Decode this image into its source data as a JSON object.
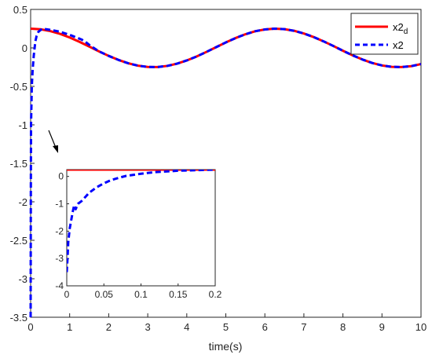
{
  "chart_data": [
    {
      "type": "line",
      "title": "",
      "xlabel": "time(s)",
      "ylabel": "",
      "xlim": [
        0,
        10
      ],
      "ylim": [
        -3.5,
        0.5
      ],
      "xticks": [
        0,
        1,
        2,
        3,
        4,
        5,
        6,
        7,
        8,
        9,
        10
      ],
      "yticks": [
        -3.5,
        -3,
        -2.5,
        -2,
        -1.5,
        -1,
        -0.5,
        0,
        0.5
      ],
      "xtick_labels": [
        "0",
        "1",
        "2",
        "3",
        "4",
        "5",
        "6",
        "7",
        "8",
        "9",
        "10"
      ],
      "ytick_labels": [
        "-3.5",
        "-3",
        "-2.5",
        "-2",
        "-1.5",
        "-1",
        "-0.5",
        "0",
        "0.5"
      ],
      "grid": false,
      "legend_position": "top-right",
      "series": [
        {
          "name": "x2_d",
          "label_base": "x2",
          "label_subscript": "d",
          "style": "solid",
          "color": "#ff0000",
          "x": [
            0,
            0.25,
            0.5,
            0.75,
            1,
            1.25,
            1.5,
            1.75,
            2,
            2.25,
            2.5,
            2.75,
            3,
            3.25,
            3.5,
            3.75,
            4,
            4.25,
            4.5,
            4.75,
            5,
            5.25,
            5.5,
            5.75,
            6,
            6.25,
            6.5,
            6.75,
            7,
            7.25,
            7.5,
            7.75,
            8,
            8.25,
            8.5,
            8.75,
            9,
            9.25,
            9.5,
            9.75,
            10
          ],
          "y": [
            0.25,
            0.242,
            0.219,
            0.183,
            0.135,
            0.079,
            0.018,
            -0.045,
            -0.104,
            -0.156,
            -0.2,
            -0.231,
            -0.247,
            -0.249,
            -0.234,
            -0.205,
            -0.163,
            -0.112,
            -0.053,
            0.009,
            0.071,
            0.128,
            0.177,
            0.216,
            0.24,
            0.25,
            0.244,
            0.222,
            0.187,
            0.141,
            0.086,
            0.026,
            -0.037,
            -0.097,
            -0.151,
            -0.196,
            -0.228,
            -0.246,
            -0.249,
            -0.237,
            -0.21
          ]
        },
        {
          "name": "x2",
          "style": "dashed",
          "color": "#0000ff",
          "x": [
            0,
            0.005,
            0.01,
            0.02,
            0.03,
            0.05,
            0.08,
            0.12,
            0.15,
            0.2,
            0.3,
            0.5,
            0.75,
            1,
            1.1,
            1.2,
            1.3,
            1.4,
            1.5,
            1.75,
            2,
            2.25,
            2.5,
            2.75,
            3,
            3.25,
            3.5,
            3.75,
            4,
            4.25,
            4.5,
            4.75,
            5,
            5.25,
            5.5,
            5.75,
            6,
            6.25,
            6.5,
            6.75,
            7,
            7.25,
            7.5,
            7.75,
            8,
            8.25,
            8.5,
            8.75,
            9,
            9.25,
            9.5,
            9.75,
            10
          ],
          "y": [
            -3.5,
            -1.9,
            -1.0,
            -0.75,
            -0.5,
            -0.3,
            -0.1,
            0.08,
            0.15,
            0.21,
            0.25,
            0.235,
            0.21,
            0.17,
            0.15,
            0.13,
            0.11,
            0.08,
            0.04,
            -0.045,
            -0.104,
            -0.156,
            -0.2,
            -0.231,
            -0.247,
            -0.249,
            -0.234,
            -0.205,
            -0.163,
            -0.112,
            -0.053,
            0.009,
            0.071,
            0.128,
            0.177,
            0.216,
            0.24,
            0.25,
            0.244,
            0.222,
            0.187,
            0.141,
            0.086,
            0.026,
            -0.037,
            -0.097,
            -0.151,
            -0.196,
            -0.228,
            -0.246,
            -0.249,
            -0.237,
            -0.21
          ]
        }
      ]
    },
    {
      "type": "line",
      "title": "",
      "xlabel": "",
      "ylabel": "",
      "xlim": [
        0,
        0.2
      ],
      "ylim": [
        -4,
        0.25
      ],
      "xticks": [
        0,
        0.05,
        0.1,
        0.15,
        0.2
      ],
      "yticks": [
        -4,
        -3,
        -2,
        -1,
        0
      ],
      "xtick_labels": [
        "0",
        "0.05",
        "0.1",
        "0.15",
        "0.2"
      ],
      "ytick_labels": [
        "-4",
        "-3",
        "-2",
        "-1",
        "0"
      ],
      "grid": false,
      "series": [
        {
          "name": "x2_d",
          "style": "solid",
          "color": "#ff0000",
          "x": [
            0,
            0.2
          ],
          "y": [
            0.25,
            0.25
          ]
        },
        {
          "name": "x2",
          "style": "dashed",
          "color": "#0000ff",
          "x": [
            0,
            0.001,
            0.002,
            0.004,
            0.006,
            0.008,
            0.01,
            0.012,
            0.015,
            0.02,
            0.025,
            0.03,
            0.04,
            0.05,
            0.06,
            0.07,
            0.08,
            0.1,
            0.12,
            0.15,
            0.2
          ],
          "y": [
            -3.5,
            -3.0,
            -2.4,
            -1.9,
            -1.6,
            -1.3,
            -1.05,
            -1.2,
            -1.0,
            -0.9,
            -0.75,
            -0.6,
            -0.4,
            -0.25,
            -0.13,
            -0.05,
            0.02,
            0.1,
            0.16,
            0.21,
            0.25
          ]
        }
      ]
    }
  ]
}
